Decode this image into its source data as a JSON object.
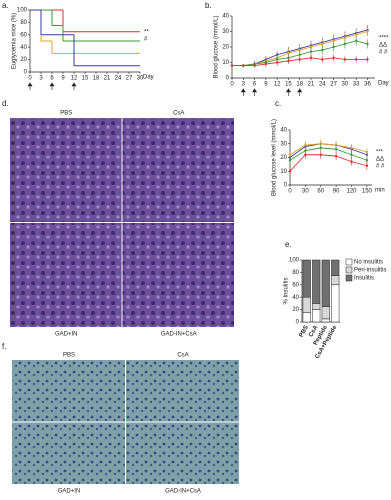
{
  "chart_data": [
    {
      "type": "step",
      "panel": "a.",
      "ylabel": "Euglycemia mice (%)",
      "xlabel": "Day",
      "xlim": [
        0,
        30
      ],
      "ylim": [
        0,
        100
      ],
      "xticks": [
        0,
        3,
        6,
        9,
        12,
        15,
        18,
        21,
        24,
        27,
        30
      ],
      "yticks": [
        0,
        20,
        40,
        60,
        80,
        100
      ],
      "annotations": [
        "**",
        "#"
      ],
      "series": [
        {
          "color": "#e03030",
          "x": [
            0,
            9
          ],
          "values": [
            100,
            65
          ]
        },
        {
          "color": "#3a9a3a",
          "x": [
            0,
            6,
            9
          ],
          "values": [
            100,
            75,
            50
          ]
        },
        {
          "color": "#e0a030",
          "x": [
            0,
            3,
            6
          ],
          "values": [
            100,
            50,
            30
          ]
        },
        {
          "color": "#3a3aa0",
          "x": [
            0,
            3,
            12
          ],
          "values": [
            100,
            60,
            10
          ]
        }
      ]
    },
    {
      "type": "line",
      "panel": "b.",
      "ylabel": "Blood glucose (mmol/L)",
      "xlabel": "Day",
      "xlim": [
        0,
        38
      ],
      "ylim": [
        0,
        40
      ],
      "xticks": [
        0,
        3,
        6,
        9,
        12,
        15,
        18,
        21,
        24,
        27,
        30,
        33,
        36
      ],
      "yticks": [
        0,
        10,
        20,
        30,
        40
      ],
      "annotations": [
        "****",
        "ΔΔ",
        "# #"
      ],
      "x": [
        0,
        3,
        6,
        9,
        12,
        15,
        18,
        21,
        24,
        27,
        30,
        33,
        36
      ],
      "series": [
        {
          "color": "#3a3aa0",
          "values": [
            8,
            8,
            9,
            12,
            15,
            17,
            19,
            21,
            23,
            25,
            27,
            29,
            31
          ],
          "errors": [
            1,
            1,
            2,
            2,
            2,
            3,
            3,
            3,
            3,
            3,
            3,
            3,
            3
          ]
        },
        {
          "color": "#e0a030",
          "values": [
            8,
            8,
            9,
            11,
            13,
            16,
            18,
            20,
            22,
            24,
            26,
            28,
            30
          ],
          "errors": [
            1,
            1,
            2,
            2,
            2,
            3,
            3,
            3,
            3,
            3,
            3,
            3,
            3
          ]
        },
        {
          "color": "#3a9a3a",
          "values": [
            8,
            8,
            9,
            10,
            12,
            13,
            15,
            17,
            18,
            20,
            22,
            24,
            22
          ],
          "errors": [
            1,
            1,
            2,
            2,
            2,
            2,
            3,
            3,
            3,
            3,
            3,
            3,
            3
          ]
        },
        {
          "color": "#e03030",
          "values": [
            8,
            8,
            8,
            9,
            10,
            11,
            12,
            13,
            12,
            13,
            12,
            12,
            12
          ],
          "errors": [
            1,
            1,
            1,
            2,
            2,
            2,
            2,
            2,
            2,
            2,
            2,
            2,
            2
          ]
        }
      ]
    },
    {
      "type": "line",
      "panel": "c.",
      "ylabel": "Blood glucose level (mmol/L)",
      "xlabel": "min",
      "xlim": [
        0,
        160
      ],
      "ylim": [
        0,
        40
      ],
      "xticks": [
        0,
        30,
        60,
        90,
        120,
        150
      ],
      "yticks": [
        0,
        10,
        20,
        30,
        40
      ],
      "annotations": [
        "***",
        "ΔΔ",
        "# #"
      ],
      "x": [
        0,
        30,
        60,
        90,
        120,
        150
      ],
      "series": [
        {
          "color": "#3a3aa0",
          "values": [
            20,
            28,
            30,
            29,
            26,
            22
          ],
          "errors": [
            2,
            3,
            3,
            3,
            3,
            3
          ]
        },
        {
          "color": "#e0a030",
          "values": [
            22,
            29,
            30,
            29,
            27,
            24
          ],
          "errors": [
            2,
            3,
            3,
            3,
            3,
            3
          ]
        },
        {
          "color": "#3a9a3a",
          "values": [
            18,
            25,
            27,
            26,
            22,
            18
          ],
          "errors": [
            2,
            3,
            3,
            3,
            3,
            3
          ]
        },
        {
          "color": "#e03030",
          "values": [
            10,
            22,
            22,
            21,
            17,
            14
          ],
          "errors": [
            2,
            3,
            3,
            3,
            3,
            3
          ]
        }
      ]
    },
    {
      "type": "stacked_bar",
      "panel": "e.",
      "ylabel": "% Insulitis",
      "ylim": [
        0,
        100
      ],
      "yticks": [
        0,
        20,
        40,
        60,
        80,
        100
      ],
      "categories": [
        "PBS",
        "CsA",
        "Peptide",
        "CsA+Peptide"
      ],
      "series": [
        {
          "name": "No insulitis",
          "color": "#ffffff",
          "values": [
            15,
            20,
            5,
            60
          ]
        },
        {
          "name": "Peri-insulitis",
          "color": "#d8d8d8",
          "values": [
            25,
            10,
            20,
            15
          ]
        },
        {
          "name": "Insulitis",
          "color": "#707070",
          "values": [
            60,
            70,
            75,
            25
          ]
        }
      ]
    }
  ],
  "image_panels": [
    {
      "letter": "d.",
      "labels": [
        "PBS",
        "CsA",
        "GAD+IN",
        "GAD-IN+CsA"
      ]
    },
    {
      "letter": "f.",
      "labels": [
        "PBS",
        "CsA",
        "GAD+IN",
        "GAD-IN+CsA"
      ]
    }
  ]
}
